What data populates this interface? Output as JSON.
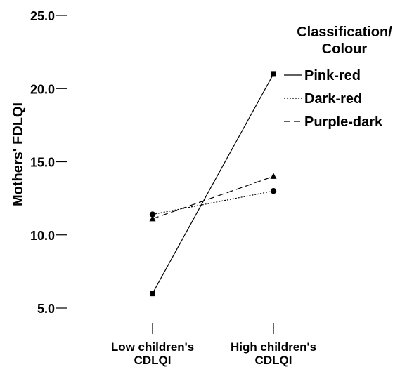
{
  "chart_data": {
    "type": "line",
    "title": "",
    "xlabel": "",
    "ylabel": "Mothers' FDLQI",
    "ylim": [
      5.0,
      25.0
    ],
    "yticks": [
      "5.0",
      "10.0",
      "15.0",
      "20.0",
      "25.0"
    ],
    "ytick_values": [
      5,
      10,
      15,
      20,
      25
    ],
    "categories": [
      [
        "Low children's",
        "CDLQI"
      ],
      [
        "High children's",
        "CDLQI"
      ]
    ],
    "legend_title": [
      "Classification/",
      "Colour"
    ],
    "legend_position": "top-right",
    "grid": false,
    "series": [
      {
        "name": "Pink-red",
        "values": [
          6.0,
          21.0
        ],
        "line": "solid",
        "marker": "square"
      },
      {
        "name": "Dark-red",
        "values": [
          11.4,
          13.0
        ],
        "line": "dotted",
        "marker": "circle"
      },
      {
        "name": "Purple-dark",
        "values": [
          11.1,
          14.0
        ],
        "line": "dashed",
        "marker": "triangle"
      }
    ],
    "colors": {
      "line": "#000000",
      "background": "#ffffff"
    }
  }
}
